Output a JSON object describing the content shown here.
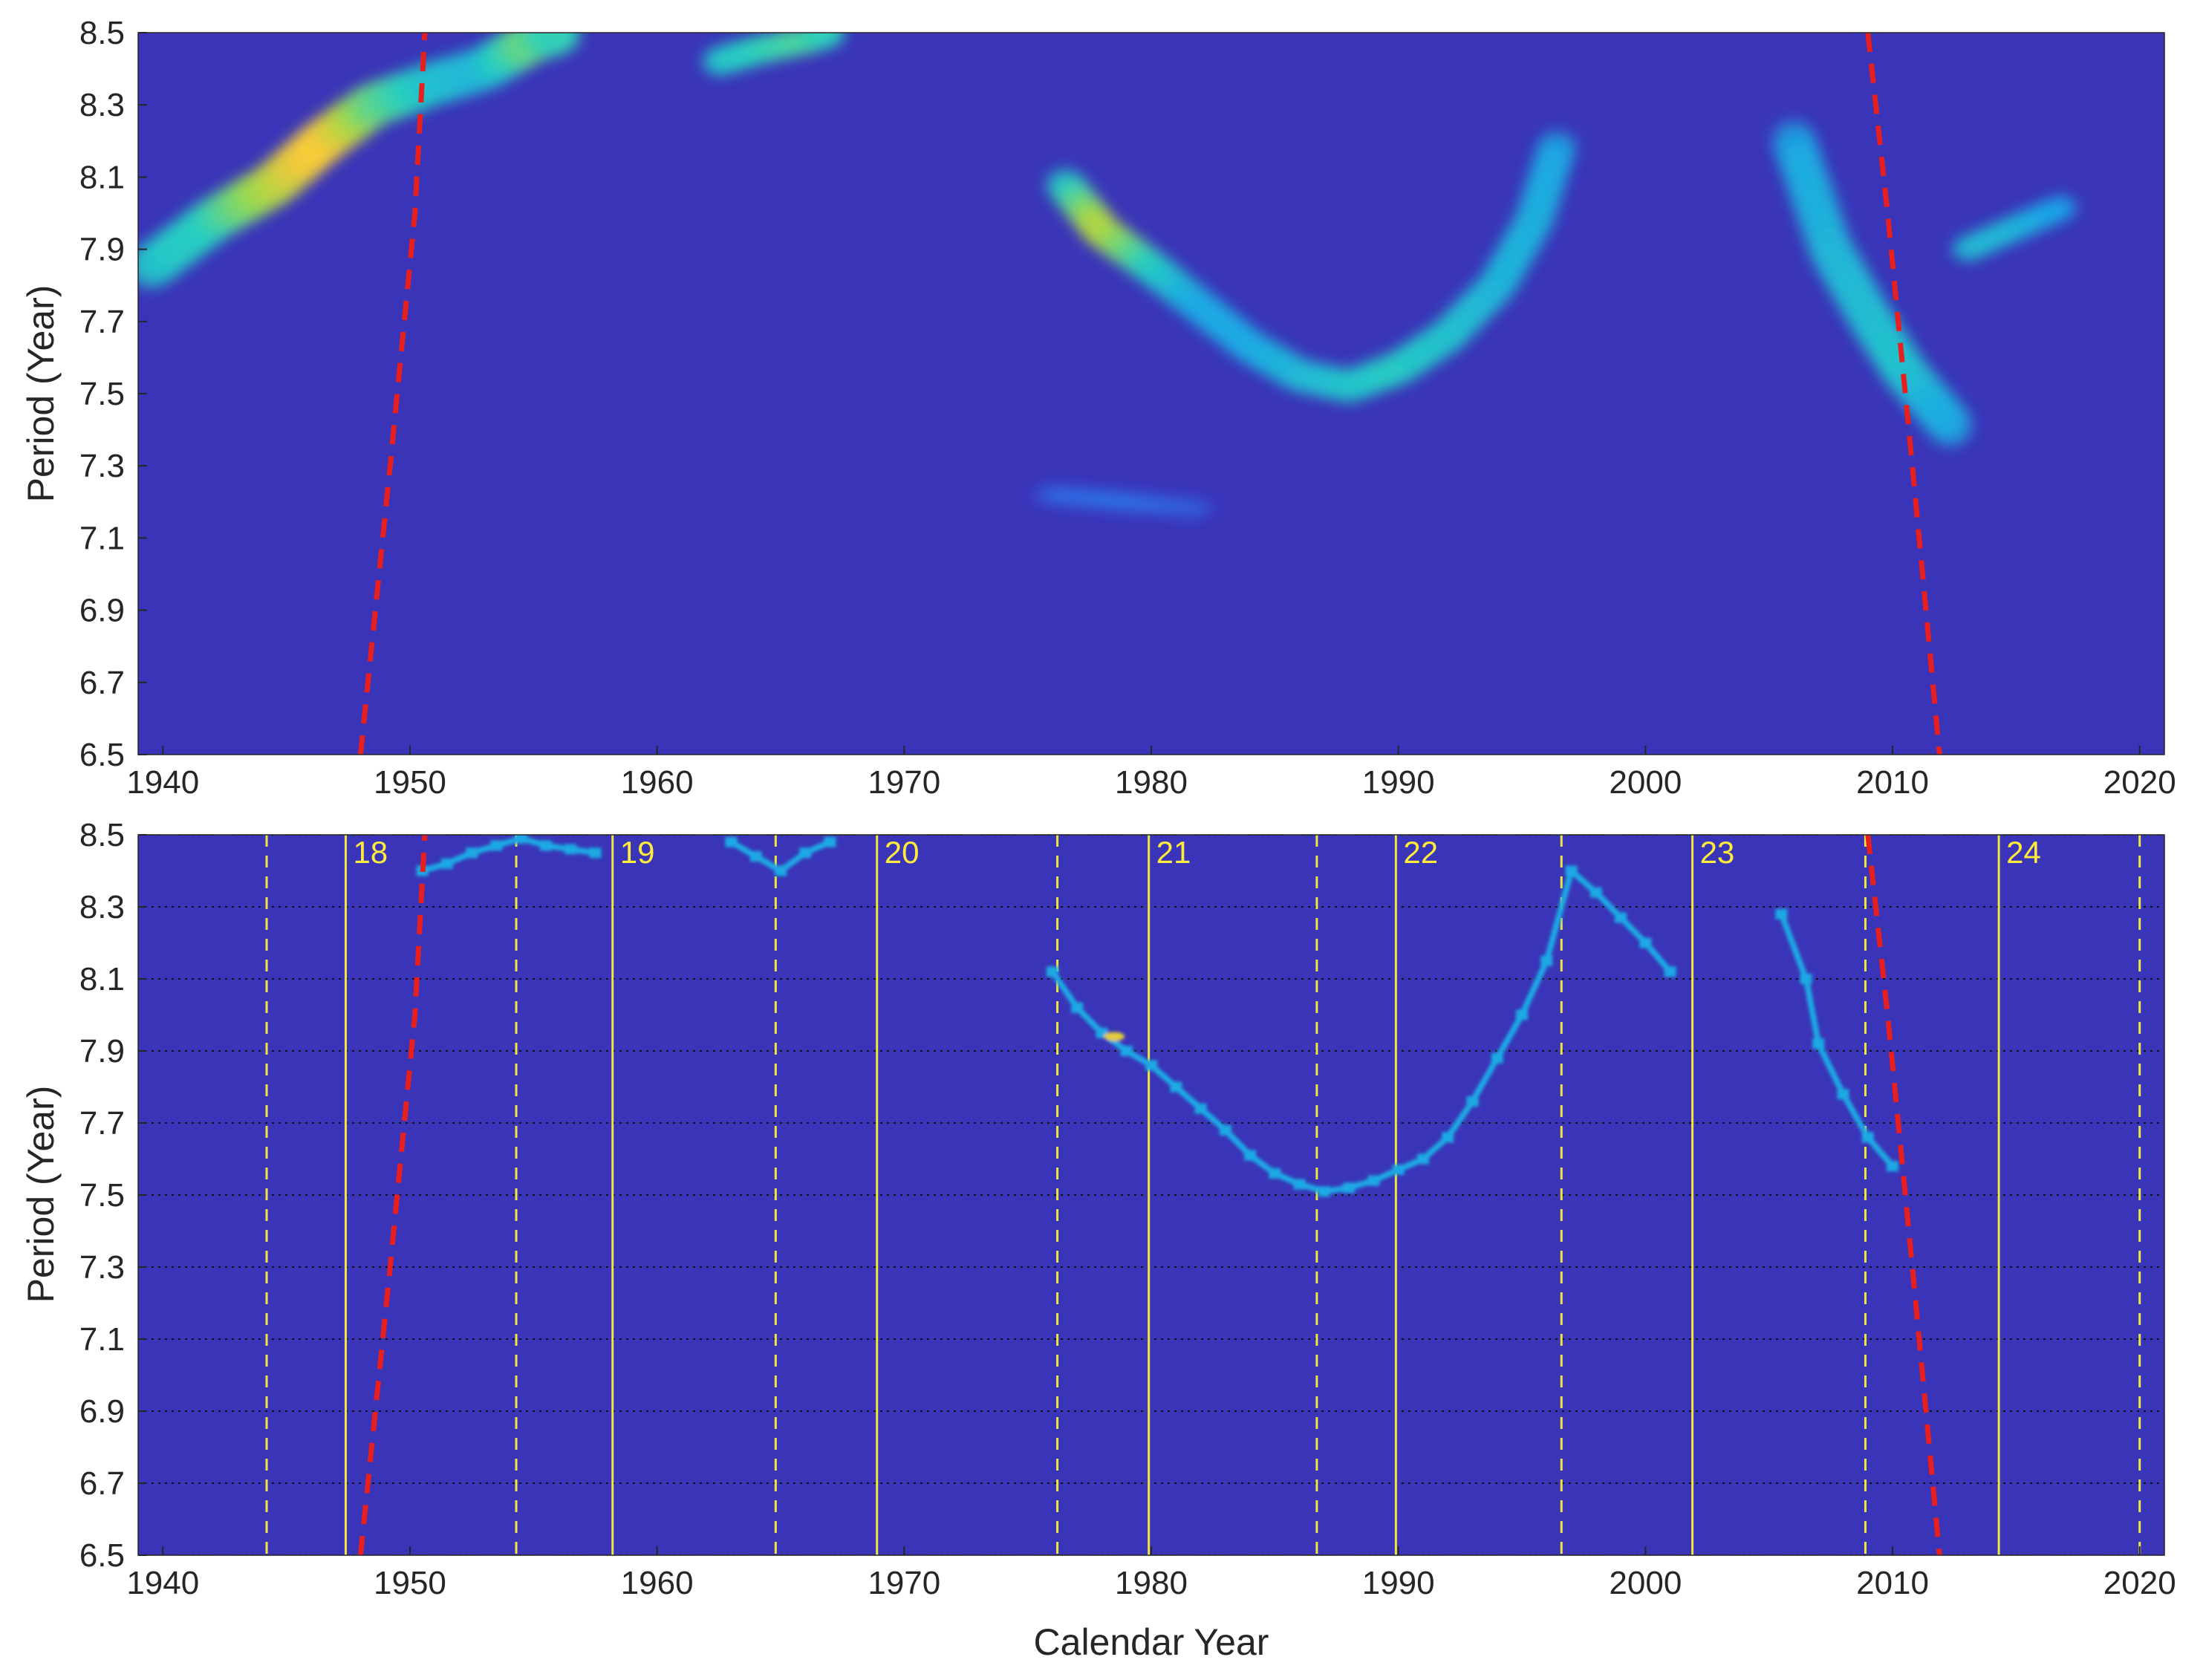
{
  "colors": {
    "background": "#3a35b8",
    "ridge_colormap": [
      "#3a35b8",
      "#2f6fe8",
      "#1aa5e8",
      "#28cfc0",
      "#9fd94a",
      "#f5c73a",
      "#f7e938"
    ],
    "boundary_line": "#e81f1f",
    "cycle_lines": "#f0e640",
    "grid": "#111111"
  },
  "chart_data": [
    {
      "type": "heatmap",
      "panel": "top",
      "title": "",
      "xlabel": "",
      "ylabel": "Period (Year)",
      "xlim": [
        1939,
        2021
      ],
      "ylim": [
        6.5,
        8.5
      ],
      "xticks": [
        "1940",
        "1950",
        "1960",
        "1970",
        "1980",
        "1990",
        "2000",
        "2010",
        "2020"
      ],
      "yticks": [
        "6.5",
        "6.7",
        "6.9",
        "7.1",
        "7.3",
        "7.5",
        "7.7",
        "7.9",
        "8.1",
        "8.3",
        "8.5"
      ],
      "grid": false,
      "ridges": [
        {
          "points": [
            [
              1939.5,
              7.85
            ],
            [
              1942,
              7.98
            ],
            [
              1944.5,
              8.08
            ],
            [
              1946.5,
              8.2
            ],
            [
              1948.5,
              8.3
            ],
            [
              1951,
              8.36
            ],
            [
              1953,
              8.4
            ],
            [
              1955,
              8.48
            ],
            [
              1956,
              8.5
            ]
          ],
          "intensity": [
            0.45,
            0.5,
            0.7,
            0.88,
            0.6,
            0.45,
            0.4,
            0.6,
            0.5
          ],
          "width_years": 2.0,
          "width_period": 0.12
        },
        {
          "points": [
            [
              1962.5,
              8.42
            ],
            [
              1964,
              8.45
            ],
            [
              1966,
              8.48
            ],
            [
              1967,
              8.5
            ]
          ],
          "intensity": [
            0.45,
            0.5,
            0.55,
            0.5
          ],
          "width_years": 1.4,
          "width_period": 0.08
        },
        {
          "points": [
            [
              1976.5,
              8.08
            ],
            [
              1978,
              7.95
            ],
            [
              1980,
              7.85
            ],
            [
              1982,
              7.74
            ],
            [
              1984,
              7.63
            ],
            [
              1986,
              7.55
            ],
            [
              1988,
              7.52
            ],
            [
              1990,
              7.57
            ],
            [
              1992,
              7.66
            ],
            [
              1994,
              7.8
            ],
            [
              1995.5,
              7.98
            ],
            [
              1996.5,
              8.2
            ]
          ],
          "intensity": [
            0.45,
            0.72,
            0.5,
            0.35,
            0.35,
            0.4,
            0.45,
            0.48,
            0.45,
            0.4,
            0.38,
            0.35
          ],
          "width_years": 1.6,
          "width_period": 0.09
        },
        {
          "points": [
            [
              2006,
              8.2
            ],
            [
              2007.5,
              7.9
            ],
            [
              2009,
              7.72
            ],
            [
              2010.5,
              7.56
            ],
            [
              2012.5,
              7.4
            ]
          ],
          "intensity": [
            0.35,
            0.4,
            0.42,
            0.45,
            0.35
          ],
          "width_years": 1.8,
          "width_period": 0.12
        },
        {
          "points": [
            [
              2013,
              7.9
            ],
            [
              2015,
              7.96
            ],
            [
              2017,
              8.02
            ]
          ],
          "intensity": [
            0.42,
            0.4,
            0.32
          ],
          "width_years": 1.3,
          "width_period": 0.07
        },
        {
          "points": [
            [
              1976,
              7.22
            ],
            [
              1979,
              7.2
            ],
            [
              1982,
              7.18
            ]
          ],
          "intensity": [
            0.15,
            0.18,
            0.12
          ],
          "width_years": 1.5,
          "width_period": 0.05
        }
      ],
      "boundary_curves": [
        {
          "points": [
            [
              1948.0,
              6.5
            ],
            [
              1949.2,
              7.3
            ],
            [
              1950.2,
              8.0
            ],
            [
              1950.6,
              8.5
            ]
          ]
        },
        {
          "points": [
            [
              2009.0,
              8.5
            ],
            [
              2009.8,
              8.0
            ],
            [
              2010.8,
              7.3
            ],
            [
              2011.9,
              6.5
            ]
          ]
        }
      ]
    },
    {
      "type": "heatmap",
      "panel": "bottom",
      "title": "",
      "xlabel": "Calendar Year",
      "ylabel": "Period (Year)",
      "xlim": [
        1939,
        2021
      ],
      "ylim": [
        6.5,
        8.5
      ],
      "xticks": [
        "1940",
        "1950",
        "1960",
        "1970",
        "1980",
        "1990",
        "2000",
        "2010",
        "2020"
      ],
      "yticks": [
        "6.5",
        "6.7",
        "6.9",
        "7.1",
        "7.3",
        "7.5",
        "7.7",
        "7.9",
        "8.1",
        "8.3",
        "8.5"
      ],
      "grid": true,
      "ridge_points": [
        [
          1950.5,
          8.4
        ],
        [
          1951.5,
          8.42
        ],
        [
          1952.5,
          8.45
        ],
        [
          1953.5,
          8.47
        ],
        [
          1954.5,
          8.49
        ],
        [
          1955.5,
          8.47
        ],
        [
          1956.5,
          8.46
        ],
        [
          1957.5,
          8.45
        ],
        [
          1963.0,
          8.48
        ],
        [
          1964.0,
          8.44
        ],
        [
          1965.0,
          8.4
        ],
        [
          1966.0,
          8.45
        ],
        [
          1967.0,
          8.48
        ],
        [
          1976.0,
          8.12
        ],
        [
          1977.0,
          8.02
        ],
        [
          1978.0,
          7.95
        ],
        [
          1979.0,
          7.9
        ],
        [
          1980.0,
          7.86
        ],
        [
          1981.0,
          7.8
        ],
        [
          1982.0,
          7.74
        ],
        [
          1983.0,
          7.68
        ],
        [
          1984.0,
          7.61
        ],
        [
          1985.0,
          7.56
        ],
        [
          1986.0,
          7.53
        ],
        [
          1987.0,
          7.51
        ],
        [
          1988.0,
          7.52
        ],
        [
          1989.0,
          7.54
        ],
        [
          1990.0,
          7.57
        ],
        [
          1991.0,
          7.6
        ],
        [
          1992.0,
          7.66
        ],
        [
          1993.0,
          7.76
        ],
        [
          1994.0,
          7.88
        ],
        [
          1995.0,
          8.0
        ],
        [
          1996.0,
          8.15
        ],
        [
          1997.0,
          8.4
        ],
        [
          1998.0,
          8.34
        ],
        [
          1999.0,
          8.27
        ],
        [
          2000.0,
          8.2
        ],
        [
          2001.0,
          8.12
        ],
        [
          2005.5,
          8.28
        ],
        [
          2006.5,
          8.1
        ],
        [
          2007.0,
          7.92
        ],
        [
          2008.0,
          7.78
        ],
        [
          2009.0,
          7.66
        ],
        [
          2010.0,
          7.58
        ]
      ],
      "ridge_peaks": [
        [
          1978.5,
          7.94
        ]
      ],
      "solar_cycles": [
        {
          "label": "18",
          "max_year": 1947.4,
          "min_year": 1944.2
        },
        {
          "label": "19",
          "max_year": 1958.2,
          "min_year": 1954.3
        },
        {
          "label": "20",
          "max_year": 1968.9,
          "min_year": 1964.8
        },
        {
          "label": "21",
          "max_year": 1979.9,
          "min_year": 1976.2
        },
        {
          "label": "22",
          "max_year": 1989.9,
          "min_year": 1986.7
        },
        {
          "label": "23",
          "max_year": 2001.9,
          "min_year": 1996.6
        },
        {
          "label": "24",
          "max_year": 2014.3,
          "min_year": 2008.9
        }
      ],
      "extra_cycle_minimum": 2020.0,
      "boundary_curves": [
        {
          "points": [
            [
              1948.0,
              6.5
            ],
            [
              1949.2,
              7.3
            ],
            [
              1950.2,
              8.0
            ],
            [
              1950.6,
              8.5
            ]
          ]
        },
        {
          "points": [
            [
              2009.0,
              8.5
            ],
            [
              2009.8,
              8.0
            ],
            [
              2010.8,
              7.3
            ],
            [
              2011.9,
              6.5
            ]
          ]
        }
      ]
    }
  ]
}
